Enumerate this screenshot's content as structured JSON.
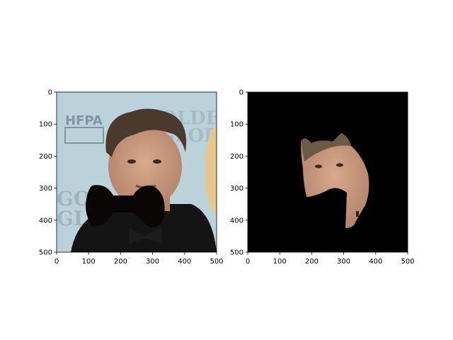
{
  "chart_data": [
    {
      "type": "image",
      "title": "",
      "xlabel": "",
      "ylabel": "",
      "xlim": [
        0,
        500
      ],
      "ylim": [
        500,
        0
      ],
      "x_ticks": [
        0,
        100,
        200,
        300,
        400,
        500
      ],
      "y_ticks": [
        0,
        100,
        200,
        300,
        400,
        500
      ],
      "x_tick_labels": [
        "0",
        "100",
        "200",
        "300",
        "400",
        "500"
      ],
      "y_tick_labels": [
        "0",
        "100",
        "200",
        "300",
        "400",
        "500"
      ],
      "background_text": [
        "HFPA",
        "GOLDEN",
        "GLOBE",
        "GOL",
        "GLO"
      ],
      "overlay": {
        "shape": "bow-tie",
        "color": "#0b0606"
      },
      "colors": {
        "backdrop": "#bcd2da",
        "skin": "#c79a7e",
        "hair": "#4a3a2e",
        "suit": "#141414"
      }
    },
    {
      "type": "image",
      "title": "",
      "xlabel": "",
      "ylabel": "",
      "xlim": [
        0,
        500
      ],
      "ylim": [
        500,
        0
      ],
      "x_ticks": [
        0,
        100,
        200,
        300,
        400,
        500
      ],
      "y_ticks": [
        0,
        100,
        200,
        300,
        400,
        500
      ],
      "x_tick_labels": [
        "0",
        "100",
        "200",
        "300",
        "400",
        "500"
      ],
      "y_tick_labels": [
        "0",
        "100",
        "200",
        "300",
        "400",
        "500"
      ],
      "mask_background": "#000000",
      "colors": {
        "skin": "#c79a7e",
        "hair": "#5a4a3c"
      }
    }
  ]
}
